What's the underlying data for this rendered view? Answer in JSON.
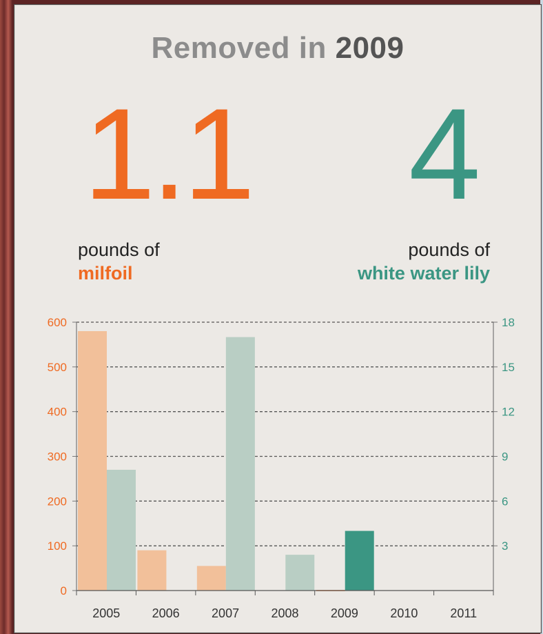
{
  "title": {
    "prefix": "Removed in",
    "year": "2009"
  },
  "stats": {
    "milfoil": {
      "value": "1.1",
      "line1": "pounds of",
      "line2": "milfoil"
    },
    "lily": {
      "value": "4",
      "line1": "pounds of",
      "line2": "white water lily"
    }
  },
  "colors": {
    "milfoil_bar": "#f2c09a",
    "milfoil_highlight": "#ef6a22",
    "lily_bar": "#b9cec4",
    "lily_highlight": "#3b9683",
    "left_axis": "#ef6a22",
    "right_axis": "#3b9683"
  },
  "chart_data": {
    "type": "bar",
    "categories": [
      "2005",
      "2006",
      "2007",
      "2008",
      "2009",
      "2010",
      "2011"
    ],
    "series": [
      {
        "values": [
          580,
          90,
          55,
          0,
          1.1,
          0,
          0
        ],
        "axis": "left"
      },
      {
        "values": [
          8.1,
          0,
          17,
          2.4,
          4,
          0,
          0
        ],
        "axis": "right"
      }
    ],
    "highlight_category": "2009",
    "ylim_left": [
      0,
      600
    ],
    "yticks_left": [
      0,
      100,
      200,
      300,
      400,
      500,
      600
    ],
    "ylim_right": [
      0,
      18
    ],
    "yticks_right": [
      3,
      6,
      9,
      12,
      15,
      18
    ],
    "grid": "dashed-horizontal",
    "legend": "none"
  }
}
